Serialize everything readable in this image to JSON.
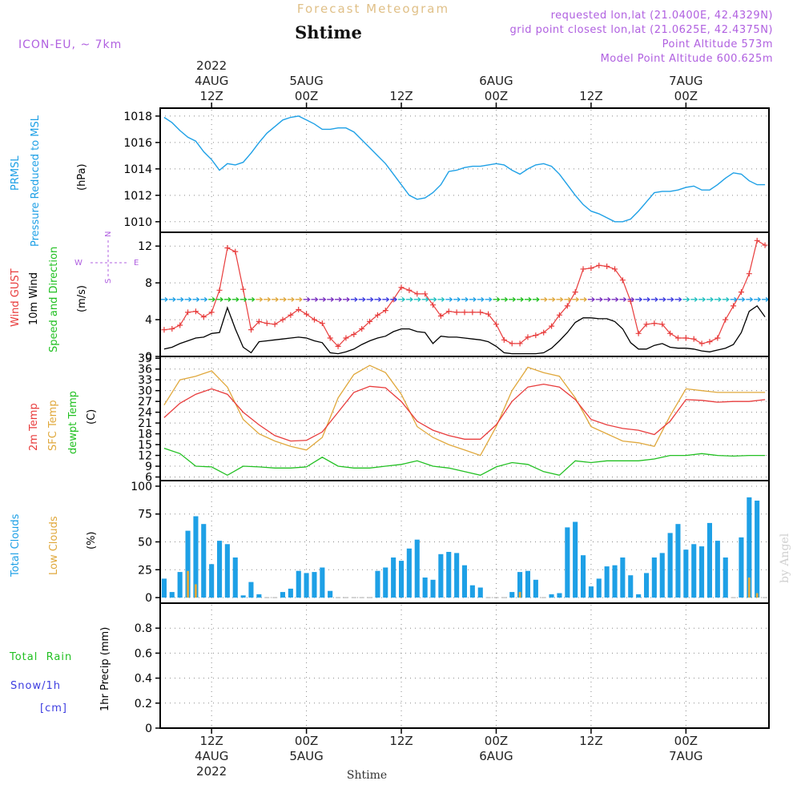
{
  "header": {
    "title_top": "Forecast Meteogram",
    "location": "Shtime",
    "model": "ICON-EU, ~ 7km",
    "requested": "requested lon,lat (21.0400E, 42.4329N)",
    "grid_point": "grid point closest lon,lat (21.0625E, 42.4375N)",
    "point_alt": "Point Altitude 573m",
    "model_alt": "Model Point Altitude 600.625m",
    "watermark": "by Angel",
    "footer_location": "Shtime"
  },
  "colors": {
    "pressure": "#1ea0e6",
    "gust": "#e83c3c",
    "wind": "#000000",
    "temp2m": "#e83c3c",
    "sfc": "#e0a83c",
    "dewpt": "#22c022",
    "total_clouds": "#1ea0e6",
    "low_clouds": "#e0a83c",
    "rain": "#22c022",
    "snow": "#3c3ce0",
    "purple": "#b060e0"
  },
  "time_axis": {
    "top_ticks": [
      {
        "t": 6,
        "lines": [
          "2022",
          "4AUG",
          "12Z"
        ]
      },
      {
        "t": 18,
        "lines": [
          "5AUG",
          "00Z"
        ]
      },
      {
        "t": 30,
        "lines": [
          "12Z"
        ]
      },
      {
        "t": 42,
        "lines": [
          "6AUG",
          "00Z"
        ]
      },
      {
        "t": 54,
        "lines": [
          "12Z"
        ]
      },
      {
        "t": 66,
        "lines": [
          "7AUG",
          "00Z"
        ]
      }
    ],
    "bottom_ticks": [
      {
        "t": 6,
        "lines": [
          "12Z",
          "4AUG",
          "2022"
        ]
      },
      {
        "t": 18,
        "lines": [
          "00Z",
          "5AUG"
        ]
      },
      {
        "t": 30,
        "lines": [
          "12Z"
        ]
      },
      {
        "t": 42,
        "lines": [
          "00Z",
          "6AUG"
        ]
      },
      {
        "t": 54,
        "lines": [
          "12Z"
        ]
      },
      {
        "t": 66,
        "lines": [
          "00Z",
          "7AUG"
        ]
      }
    ]
  },
  "panels": {
    "pressure": {
      "label1": "PRMSL",
      "label2": "Pressure Reduced to MSL",
      "unit": "(hPa)"
    },
    "wind": {
      "label_gust": "Wind GUST",
      "label_wind": "10m Wind",
      "label_dir": "Speed and Direction",
      "unit": "(m/s)",
      "compass_n": "N",
      "compass_s": "S",
      "compass_w": "W",
      "compass_e": "E"
    },
    "temp": {
      "label_2m": "2m Temp",
      "label_sfc": "SFC Temp",
      "label_dew": "dewpt Temp",
      "unit": "(C)"
    },
    "clouds": {
      "label_total": "Total Clouds",
      "label_low": "Low Clouds",
      "unit": "(%)"
    },
    "precip": {
      "label_rain": "Total  Rain",
      "label_snow": "Snow/1h",
      "label_cm": "[cm]",
      "unit": "1hr Precip (mm)"
    }
  },
  "chart_data": [
    {
      "type": "line",
      "title": "PRMSL",
      "ylabel": "(hPa)",
      "ylim": [
        1009.2,
        1018.6
      ],
      "yticks": [
        1010,
        1012,
        1014,
        1016,
        1018
      ],
      "x": [
        0,
        1,
        2,
        3,
        4,
        5,
        6,
        7,
        8,
        9,
        10,
        11,
        12,
        13,
        14,
        15,
        16,
        17,
        18,
        19,
        20,
        21,
        22,
        23,
        24,
        25,
        26,
        27,
        28,
        29,
        30,
        31,
        32,
        33,
        34,
        35,
        36,
        37,
        38,
        39,
        40,
        41,
        42,
        43,
        44,
        45,
        46,
        47,
        48,
        49,
        50,
        51,
        52,
        53,
        54,
        55,
        56,
        57,
        58,
        59,
        60,
        61,
        62,
        63,
        64,
        65,
        66,
        67,
        68,
        69,
        70,
        71,
        72,
        73,
        74,
        75,
        76
      ],
      "series": [
        {
          "name": "PRMSL",
          "values": [
            1017.9,
            1017.5,
            1016.9,
            1016.4,
            1016.1,
            1015.3,
            1014.7,
            1013.9,
            1014.4,
            1014.3,
            1014.5,
            1015.2,
            1016.0,
            1016.7,
            1017.2,
            1017.7,
            1017.9,
            1018.0,
            1017.7,
            1017.4,
            1017.0,
            1017.0,
            1017.1,
            1017.1,
            1016.8,
            1016.2,
            1015.6,
            1015.0,
            1014.4,
            1013.6,
            1012.8,
            1012.0,
            1011.7,
            1011.8,
            1012.2,
            1012.8,
            1013.8,
            1013.9,
            1014.1,
            1014.2,
            1014.2,
            1014.3,
            1014.4,
            1014.3,
            1013.9,
            1013.6,
            1014.0,
            1014.3,
            1014.4,
            1014.2,
            1013.6,
            1012.8,
            1012.0,
            1011.3,
            1010.8,
            1010.6,
            1010.3,
            1010.0,
            1010.0,
            1010.2,
            1010.8,
            1011.5,
            1012.2,
            1012.3,
            1012.3,
            1012.4,
            1012.6,
            1012.7,
            1012.4,
            1012.4,
            1012.8,
            1013.3,
            1013.7,
            1013.6,
            1013.1,
            1012.8,
            1012.8
          ]
        }
      ]
    },
    {
      "type": "line",
      "title": "Wind GUST / 10m Wind",
      "ylabel": "(m/s)",
      "ylim": [
        0,
        13.5
      ],
      "yticks": [
        0,
        4,
        8,
        12
      ],
      "x": [
        0,
        1,
        2,
        3,
        4,
        5,
        6,
        7,
        8,
        9,
        10,
        11,
        12,
        13,
        14,
        15,
        16,
        17,
        18,
        19,
        20,
        21,
        22,
        23,
        24,
        25,
        26,
        27,
        28,
        29,
        30,
        31,
        32,
        33,
        34,
        35,
        36,
        37,
        38,
        39,
        40,
        41,
        42,
        43,
        44,
        45,
        46,
        47,
        48,
        49,
        50,
        51,
        52,
        53,
        54,
        55,
        56,
        57,
        58,
        59,
        60,
        61,
        62,
        63,
        64,
        65,
        66,
        67,
        68,
        69,
        70,
        71,
        72,
        73,
        74,
        75,
        76
      ],
      "series": [
        {
          "name": "Wind GUST",
          "values": [
            2.9,
            3.0,
            3.4,
            4.8,
            4.9,
            4.3,
            4.8,
            7.2,
            11.8,
            11.4,
            7.3,
            2.9,
            3.8,
            3.6,
            3.5,
            4.0,
            4.5,
            5.1,
            4.6,
            4.0,
            3.6,
            2.0,
            1.1,
            2.0,
            2.4,
            3.0,
            3.8,
            4.5,
            5.0,
            6.2,
            7.5,
            7.2,
            6.8,
            6.8,
            5.6,
            4.4,
            4.9,
            4.8,
            4.8,
            4.8,
            4.8,
            4.6,
            3.5,
            1.8,
            1.4,
            1.4,
            2.1,
            2.3,
            2.6,
            3.3,
            4.5,
            5.5,
            7.0,
            9.5,
            9.6,
            9.9,
            9.8,
            9.5,
            8.3,
            6.0,
            2.5,
            3.5,
            3.6,
            3.5,
            2.5,
            2.0,
            2.0,
            1.9,
            1.4,
            1.6,
            2.0,
            4.0,
            5.5,
            7.0,
            9.0,
            12.6,
            12.1
          ]
        },
        {
          "name": "10m Wind",
          "values": [
            0.8,
            1.0,
            1.4,
            1.7,
            2.0,
            2.1,
            2.5,
            2.6,
            5.3,
            3.0,
            1.0,
            0.4,
            1.6,
            1.7,
            1.8,
            1.9,
            2.0,
            2.1,
            2.0,
            1.7,
            1.5,
            0.4,
            0.3,
            0.5,
            0.8,
            1.3,
            1.7,
            2.0,
            2.2,
            2.7,
            3.0,
            3.0,
            2.7,
            2.6,
            1.4,
            2.2,
            2.1,
            2.1,
            2.0,
            1.9,
            1.8,
            1.6,
            1.1,
            0.4,
            0.3,
            0.3,
            0.3,
            0.3,
            0.4,
            0.9,
            1.7,
            2.6,
            3.7,
            4.2,
            4.2,
            4.1,
            4.1,
            3.8,
            3.0,
            1.5,
            0.8,
            0.8,
            1.2,
            1.4,
            1.0,
            0.9,
            0.9,
            0.8,
            0.6,
            0.5,
            0.7,
            0.9,
            1.3,
            2.6,
            4.9,
            5.5,
            4.3
          ]
        }
      ]
    },
    {
      "type": "line",
      "title": "2m Temp / SFC Temp / dewpt Temp",
      "ylabel": "(C)",
      "ylim": [
        5,
        39.5
      ],
      "yticks": [
        6,
        9,
        12,
        15,
        18,
        21,
        24,
        27,
        30,
        33,
        36,
        39
      ],
      "x": [
        0,
        2,
        4,
        6,
        8,
        10,
        12,
        14,
        16,
        18,
        20,
        22,
        24,
        26,
        28,
        30,
        32,
        34,
        36,
        38,
        40,
        42,
        44,
        46,
        48,
        50,
        52,
        54,
        56,
        58,
        60,
        62,
        64,
        66,
        68,
        70,
        72,
        74,
        76
      ],
      "series": [
        {
          "name": "2m Temp",
          "values": [
            22.5,
            26.5,
            29.0,
            30.5,
            29.0,
            24.0,
            20.5,
            17.5,
            16.0,
            16.2,
            18.5,
            24.0,
            29.5,
            31.2,
            30.8,
            27.0,
            21.5,
            19.0,
            17.5,
            16.5,
            16.5,
            20.5,
            27.0,
            31.0,
            31.8,
            31.0,
            27.5,
            22.0,
            20.5,
            19.5,
            19.0,
            17.8,
            21.5,
            27.5,
            27.3,
            26.8,
            27.0,
            27.0,
            27.5
          ]
        },
        {
          "name": "SFC Temp",
          "values": [
            26.0,
            33.0,
            34.0,
            35.5,
            31.0,
            22.0,
            18.0,
            16.0,
            14.5,
            13.5,
            17.0,
            28.0,
            34.5,
            37.0,
            35.0,
            29.0,
            20.0,
            17.0,
            15.0,
            13.5,
            12.0,
            20.0,
            30.0,
            36.5,
            35.0,
            34.0,
            28.0,
            20.0,
            18.0,
            16.0,
            15.5,
            14.5,
            23.0,
            30.5,
            30.0,
            29.5,
            29.5,
            29.5,
            29.5
          ]
        },
        {
          "name": "dewpt Temp",
          "values": [
            14.0,
            12.5,
            9.0,
            8.8,
            6.5,
            9.0,
            8.8,
            8.5,
            8.5,
            8.8,
            11.5,
            9.0,
            8.5,
            8.5,
            9.0,
            9.5,
            10.5,
            9.0,
            8.5,
            7.5,
            6.5,
            8.8,
            10.0,
            9.5,
            7.5,
            6.5,
            10.5,
            10.0,
            10.5,
            10.5,
            10.5,
            11.0,
            12.0,
            12.0,
            12.5,
            12.0,
            11.8,
            12.0,
            12.0
          ]
        }
      ]
    },
    {
      "type": "bar",
      "title": "Total Clouds / Low Clouds",
      "ylabel": "(%)",
      "ylim": [
        -5,
        105
      ],
      "yticks": [
        0,
        25,
        50,
        75,
        100
      ],
      "x": [
        0,
        1,
        2,
        3,
        4,
        5,
        6,
        7,
        8,
        9,
        10,
        11,
        12,
        13,
        14,
        15,
        16,
        17,
        18,
        19,
        20,
        21,
        22,
        23,
        24,
        25,
        26,
        27,
        28,
        29,
        30,
        31,
        32,
        33,
        34,
        35,
        36,
        37,
        38,
        39,
        40,
        41,
        42,
        43,
        44,
        45,
        46,
        47,
        48,
        49,
        50,
        51,
        52,
        53,
        54,
        55,
        56,
        57,
        58,
        59,
        60,
        61,
        62,
        63,
        64,
        65,
        66,
        67,
        68,
        69,
        70,
        71,
        72,
        73,
        74,
        75,
        76
      ],
      "series": [
        {
          "name": "Total Clouds",
          "values": [
            17,
            5,
            23,
            60,
            73,
            66,
            30,
            51,
            48,
            36,
            2,
            14,
            3,
            0,
            0,
            5,
            8,
            24,
            22,
            23,
            27,
            6,
            0,
            0,
            0,
            0,
            0,
            24,
            27,
            36,
            33,
            44,
            52,
            18,
            16,
            39,
            41,
            40,
            29,
            11,
            9,
            0,
            0,
            0,
            5,
            23,
            24,
            16,
            0,
            3,
            4,
            63,
            68,
            38,
            10,
            17,
            28,
            29,
            36,
            20,
            3,
            22,
            36,
            40,
            58,
            66,
            43,
            48,
            46,
            67,
            51,
            36,
            0,
            54,
            90,
            87,
            0
          ]
        },
        {
          "name": "Low Clouds",
          "values": [
            0,
            0,
            0,
            24,
            12,
            0,
            0,
            0,
            0,
            0,
            0,
            0,
            0,
            0,
            0,
            0,
            0,
            0,
            0,
            0,
            0,
            0,
            0,
            0,
            0,
            0,
            0,
            0,
            0,
            0,
            0,
            0,
            0,
            0,
            0,
            0,
            0,
            0,
            0,
            0,
            0,
            0,
            0,
            0,
            0,
            5,
            0,
            0,
            0,
            0,
            0,
            0,
            0,
            0,
            0,
            0,
            0,
            0,
            0,
            0,
            0,
            0,
            0,
            0,
            0,
            0,
            0,
            0,
            0,
            0,
            0,
            0,
            0,
            0,
            18,
            4,
            0
          ]
        }
      ]
    },
    {
      "type": "line",
      "title": "Total Rain / Snow",
      "ylabel": "1hr Precip (mm)",
      "ylim": [
        0,
        1.0
      ],
      "yticks": [
        0,
        0.2,
        0.4,
        0.6,
        0.8
      ],
      "x": [
        0,
        76
      ],
      "series": [
        {
          "name": "Total Rain",
          "values": [
            0,
            0
          ]
        },
        {
          "name": "Snow/1h",
          "values": [
            0,
            0
          ]
        }
      ]
    }
  ]
}
